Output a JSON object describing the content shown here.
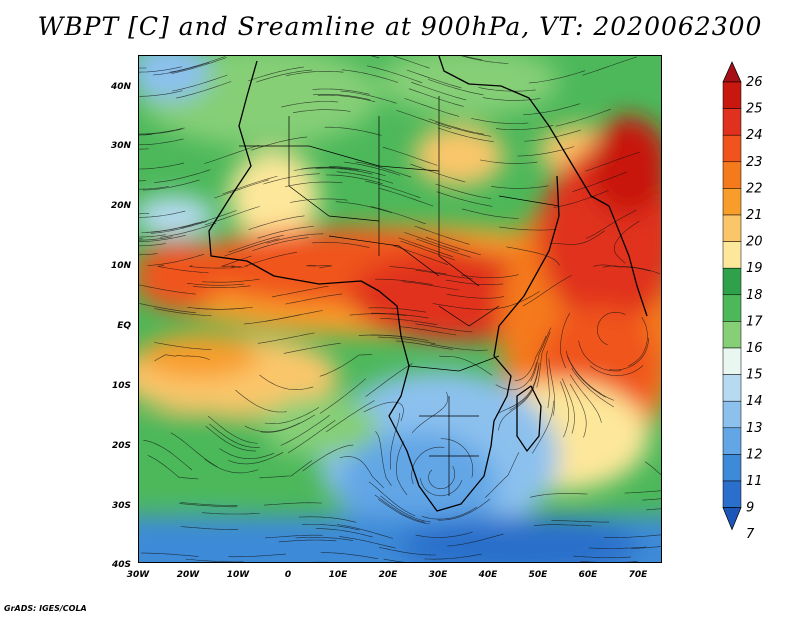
{
  "title": "WBPT [C] and Sreamline at 900hPa, VT: 2020062300",
  "credit": "GrADS: IGES/COLA",
  "lat_ticks": [
    "40N",
    "30N",
    "20N",
    "10N",
    "EQ",
    "10S",
    "20S",
    "30S",
    "40S"
  ],
  "lon_ticks": [
    "30W",
    "20W",
    "10W",
    "0",
    "10E",
    "20E",
    "30E",
    "40E",
    "50E",
    "60E",
    "70E"
  ],
  "colorbar": {
    "labels": [
      "26",
      "25",
      "24",
      "23",
      "22",
      "21",
      "20",
      "19",
      "18",
      "17",
      "16",
      "15",
      "14",
      "13",
      "12",
      "11",
      "9",
      "7"
    ],
    "colors": [
      "#a50f15",
      "#c8170f",
      "#e0301e",
      "#f0541c",
      "#f57a1c",
      "#f89d2a",
      "#fbc66a",
      "#fde79a",
      "#2ea14a",
      "#4cb85a",
      "#86cf77",
      "#e8f7f0",
      "#b7daf3",
      "#8cc1ee",
      "#62a6e6",
      "#3d8ad8",
      "#2a6fcb",
      "#1c56b8"
    ]
  },
  "map": {
    "lon_range": [
      -30,
      75
    ],
    "lat_range": [
      -40,
      45
    ]
  }
}
